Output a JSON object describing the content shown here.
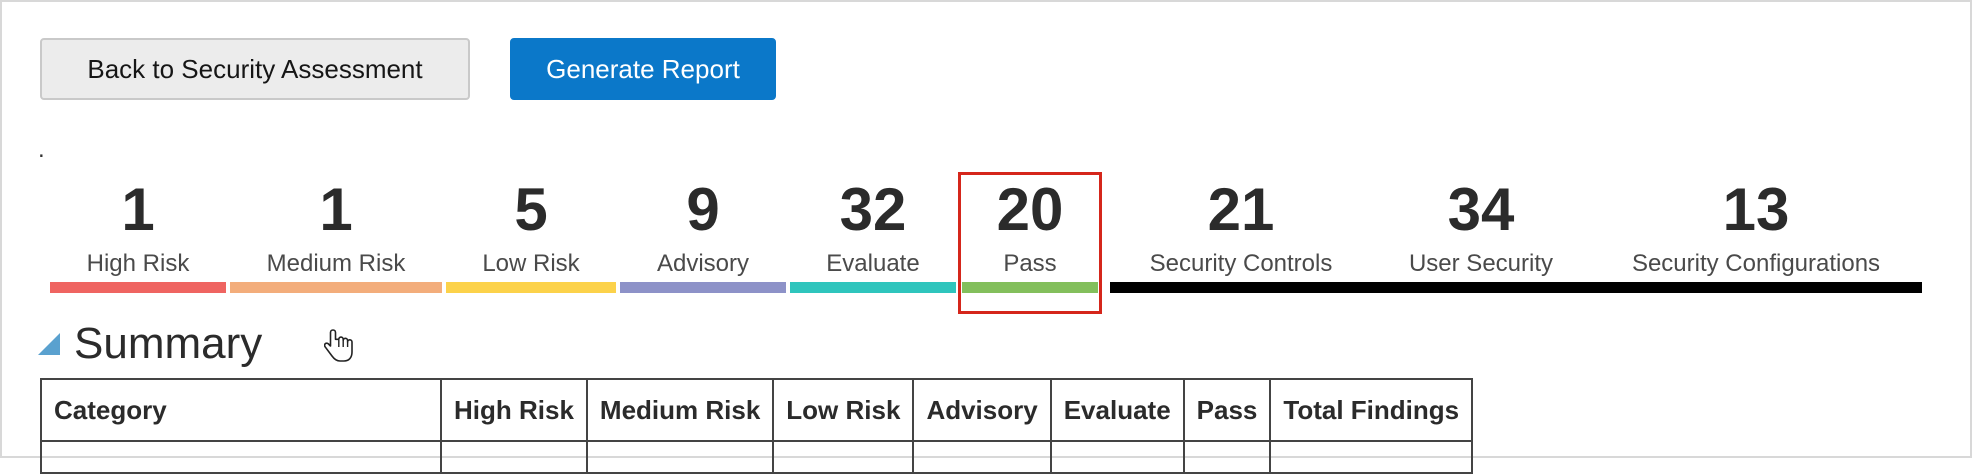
{
  "buttons": {
    "back_label": "Back to Security Assessment",
    "generate_label": "Generate Report"
  },
  "dot": ".",
  "metrics": [
    {
      "value": "1",
      "label": "High Risk",
      "color": "#ef6461"
    },
    {
      "value": "1",
      "label": "Medium Risk",
      "color": "#f3ad7b"
    },
    {
      "value": "5",
      "label": "Low Risk",
      "color": "#fcd24a"
    },
    {
      "value": "9",
      "label": "Advisory",
      "color": "#8d92c8"
    },
    {
      "value": "32",
      "label": "Evaluate",
      "color": "#2fc5bd"
    },
    {
      "value": "20",
      "label": "Pass",
      "color": "#83bf5c",
      "selected": true
    },
    {
      "value": "21",
      "label": "Security Controls",
      "color": "#000000"
    },
    {
      "value": "34",
      "label": "User Security",
      "color": "#000000"
    },
    {
      "value": "13",
      "label": "Security Configurations",
      "color": "#000000"
    }
  ],
  "summary": {
    "title": "Summary",
    "columns": [
      "Category",
      "High Risk",
      "Medium Risk",
      "Low Risk",
      "Advisory",
      "Evaluate",
      "Pass",
      "Total Findings"
    ]
  }
}
